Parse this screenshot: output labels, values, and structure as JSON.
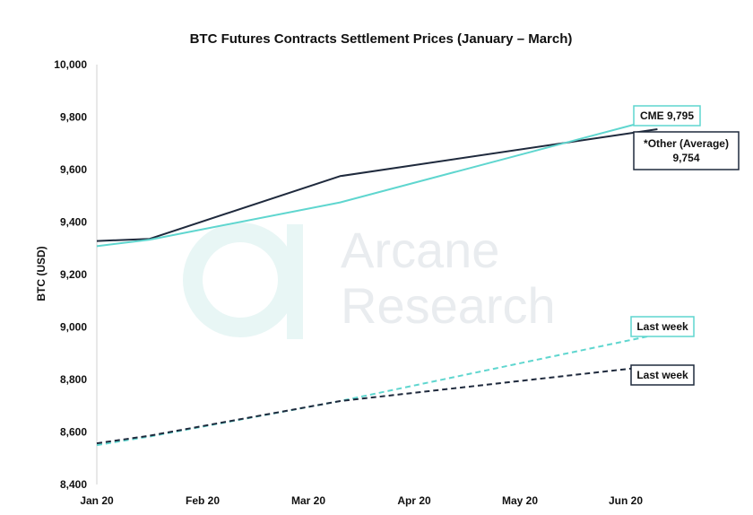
{
  "chart_data": {
    "type": "line",
    "title": "BTC Futures Contracts Settlement Prices (January – March)",
    "ylabel": "BTC (USD)",
    "xlabel": "",
    "x_labels": [
      "Jan 20",
      "Feb 20",
      "Mar 20",
      "Apr 20",
      "May 20",
      "Jun 20"
    ],
    "ylim": [
      8400,
      10000
    ],
    "y_ticks": [
      8400,
      8600,
      8800,
      9000,
      9200,
      9400,
      9600,
      9800,
      10000
    ],
    "y_tick_labels": [
      "8,400",
      "8,600",
      "8,800",
      "9,000",
      "9,200",
      "9,400",
      "9,600",
      "9,800",
      "10,000"
    ],
    "grid": false,
    "series": [
      {
        "key": "other",
        "style": "solid",
        "color": "#1f2a3d",
        "x": [
          0,
          0.5,
          2.3,
          5.3
        ],
        "y": [
          9328,
          9336,
          9575,
          9754
        ]
      },
      {
        "key": "cme",
        "style": "solid",
        "color": "#5fd6cf",
        "x": [
          0,
          0.5,
          2.3,
          5.3
        ],
        "y": [
          9308,
          9333,
          9475,
          9795
        ]
      },
      {
        "key": "cme_last_week",
        "style": "dashed",
        "color": "#5fd6cf",
        "x": [
          0,
          0.5,
          2.3,
          5.3
        ],
        "y": [
          8550,
          8583,
          8718,
          8972
        ]
      },
      {
        "key": "other_last_week",
        "style": "dashed",
        "color": "#1f2a3d",
        "x": [
          0,
          0.5,
          2.3,
          5.3
        ],
        "y": [
          8557,
          8586,
          8718,
          8853
        ]
      }
    ],
    "annotations": [
      {
        "key": "cme",
        "lines": [
          "CME 9,795"
        ],
        "border": "#5fd6cf"
      },
      {
        "key": "other",
        "lines": [
          "*Other (Average)",
          "9,754"
        ],
        "border": "#1f2a3d"
      },
      {
        "key": "cme_last_week",
        "lines": [
          "Last week"
        ],
        "border": "#5fd6cf"
      },
      {
        "key": "other_last_week",
        "lines": [
          "Last week"
        ],
        "border": "#1f2a3d"
      }
    ]
  },
  "watermark": {
    "lines": [
      "Arcane",
      "Research"
    ]
  }
}
